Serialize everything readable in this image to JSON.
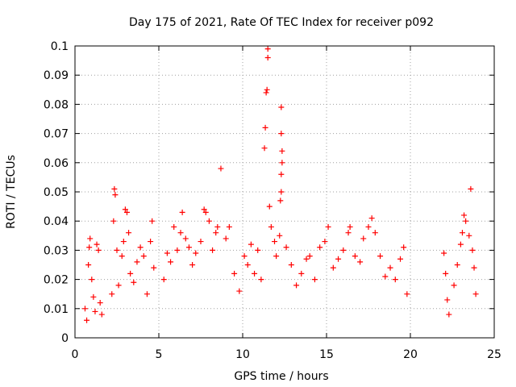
{
  "chart_data": {
    "type": "scatter",
    "title": "Day 175 of 2021, Rate Of TEC Index for receiver p092",
    "xlabel": "GPS time / hours",
    "ylabel": "ROTI / TECUs",
    "xlim": [
      0,
      25
    ],
    "ylim": [
      0,
      0.1
    ],
    "xticks": [
      0,
      5,
      10,
      15,
      20,
      25
    ],
    "xtick_labels": [
      "0",
      "5",
      "10",
      "15",
      "20",
      "25"
    ],
    "yticks": [
      0,
      0.01,
      0.02,
      0.03,
      0.04,
      0.05,
      0.06,
      0.07,
      0.08,
      0.09,
      0.1
    ],
    "ytick_labels": [
      "0",
      "0.01",
      "0.02",
      "0.03",
      "0.04",
      "0.05",
      "0.06",
      "0.07",
      "0.08",
      "0.09",
      "0.1"
    ],
    "grid": true,
    "marker": "+",
    "marker_color": "#ff0000",
    "series": [
      {
        "name": "",
        "points": [
          [
            0.6,
            0.01
          ],
          [
            0.7,
            0.006
          ],
          [
            0.8,
            0.025
          ],
          [
            0.85,
            0.031
          ],
          [
            0.9,
            0.034
          ],
          [
            1.0,
            0.02
          ],
          [
            1.1,
            0.014
          ],
          [
            1.2,
            0.009
          ],
          [
            1.3,
            0.032
          ],
          [
            1.4,
            0.03
          ],
          [
            1.5,
            0.012
          ],
          [
            1.6,
            0.008
          ],
          [
            2.2,
            0.015
          ],
          [
            2.3,
            0.04
          ],
          [
            2.35,
            0.051
          ],
          [
            2.4,
            0.049
          ],
          [
            2.5,
            0.03
          ],
          [
            2.6,
            0.018
          ],
          [
            2.8,
            0.028
          ],
          [
            2.9,
            0.033
          ],
          [
            3.0,
            0.044
          ],
          [
            3.1,
            0.043
          ],
          [
            3.2,
            0.036
          ],
          [
            3.3,
            0.022
          ],
          [
            3.5,
            0.019
          ],
          [
            3.7,
            0.026
          ],
          [
            3.9,
            0.031
          ],
          [
            4.1,
            0.028
          ],
          [
            4.3,
            0.015
          ],
          [
            4.5,
            0.033
          ],
          [
            4.6,
            0.04
          ],
          [
            4.7,
            0.024
          ],
          [
            5.3,
            0.02
          ],
          [
            5.5,
            0.029
          ],
          [
            5.7,
            0.026
          ],
          [
            5.9,
            0.038
          ],
          [
            6.1,
            0.03
          ],
          [
            6.3,
            0.036
          ],
          [
            6.4,
            0.043
          ],
          [
            6.6,
            0.034
          ],
          [
            6.8,
            0.031
          ],
          [
            7.0,
            0.025
          ],
          [
            7.2,
            0.029
          ],
          [
            7.5,
            0.033
          ],
          [
            7.7,
            0.044
          ],
          [
            7.8,
            0.043
          ],
          [
            8.0,
            0.04
          ],
          [
            8.2,
            0.03
          ],
          [
            8.4,
            0.036
          ],
          [
            8.5,
            0.038
          ],
          [
            8.7,
            0.058
          ],
          [
            9.0,
            0.034
          ],
          [
            9.2,
            0.038
          ],
          [
            9.5,
            0.022
          ],
          [
            9.8,
            0.016
          ],
          [
            10.1,
            0.028
          ],
          [
            10.3,
            0.025
          ],
          [
            10.5,
            0.032
          ],
          [
            10.7,
            0.022
          ],
          [
            10.9,
            0.03
          ],
          [
            11.1,
            0.02
          ],
          [
            11.3,
            0.065
          ],
          [
            11.35,
            0.072
          ],
          [
            11.4,
            0.084
          ],
          [
            11.45,
            0.085
          ],
          [
            11.5,
            0.096
          ],
          [
            11.5,
            0.099
          ],
          [
            11.6,
            0.045
          ],
          [
            11.7,
            0.038
          ],
          [
            11.9,
            0.033
          ],
          [
            12.0,
            0.028
          ],
          [
            12.2,
            0.035
          ],
          [
            12.25,
            0.047
          ],
          [
            12.3,
            0.05
          ],
          [
            12.3,
            0.056
          ],
          [
            12.35,
            0.06
          ],
          [
            12.35,
            0.064
          ],
          [
            12.3,
            0.07
          ],
          [
            12.3,
            0.079
          ],
          [
            12.6,
            0.031
          ],
          [
            12.9,
            0.025
          ],
          [
            13.2,
            0.018
          ],
          [
            13.5,
            0.022
          ],
          [
            13.8,
            0.027
          ],
          [
            14.0,
            0.028
          ],
          [
            14.3,
            0.02
          ],
          [
            14.6,
            0.031
          ],
          [
            14.9,
            0.033
          ],
          [
            15.1,
            0.038
          ],
          [
            15.4,
            0.024
          ],
          [
            15.7,
            0.027
          ],
          [
            16.0,
            0.03
          ],
          [
            16.3,
            0.036
          ],
          [
            16.4,
            0.038
          ],
          [
            16.7,
            0.028
          ],
          [
            17.0,
            0.026
          ],
          [
            17.2,
            0.034
          ],
          [
            17.5,
            0.038
          ],
          [
            17.7,
            0.041
          ],
          [
            17.9,
            0.036
          ],
          [
            18.2,
            0.028
          ],
          [
            18.5,
            0.021
          ],
          [
            18.8,
            0.024
          ],
          [
            19.1,
            0.02
          ],
          [
            19.4,
            0.027
          ],
          [
            19.6,
            0.031
          ],
          [
            19.8,
            0.015
          ],
          [
            22.0,
            0.029
          ],
          [
            22.1,
            0.022
          ],
          [
            22.2,
            0.013
          ],
          [
            22.3,
            0.008
          ],
          [
            22.6,
            0.018
          ],
          [
            22.8,
            0.025
          ],
          [
            23.0,
            0.032
          ],
          [
            23.1,
            0.036
          ],
          [
            23.2,
            0.042
          ],
          [
            23.3,
            0.04
          ],
          [
            23.5,
            0.035
          ],
          [
            23.6,
            0.051
          ],
          [
            23.7,
            0.03
          ],
          [
            23.8,
            0.024
          ],
          [
            23.9,
            0.015
          ]
        ]
      }
    ]
  }
}
